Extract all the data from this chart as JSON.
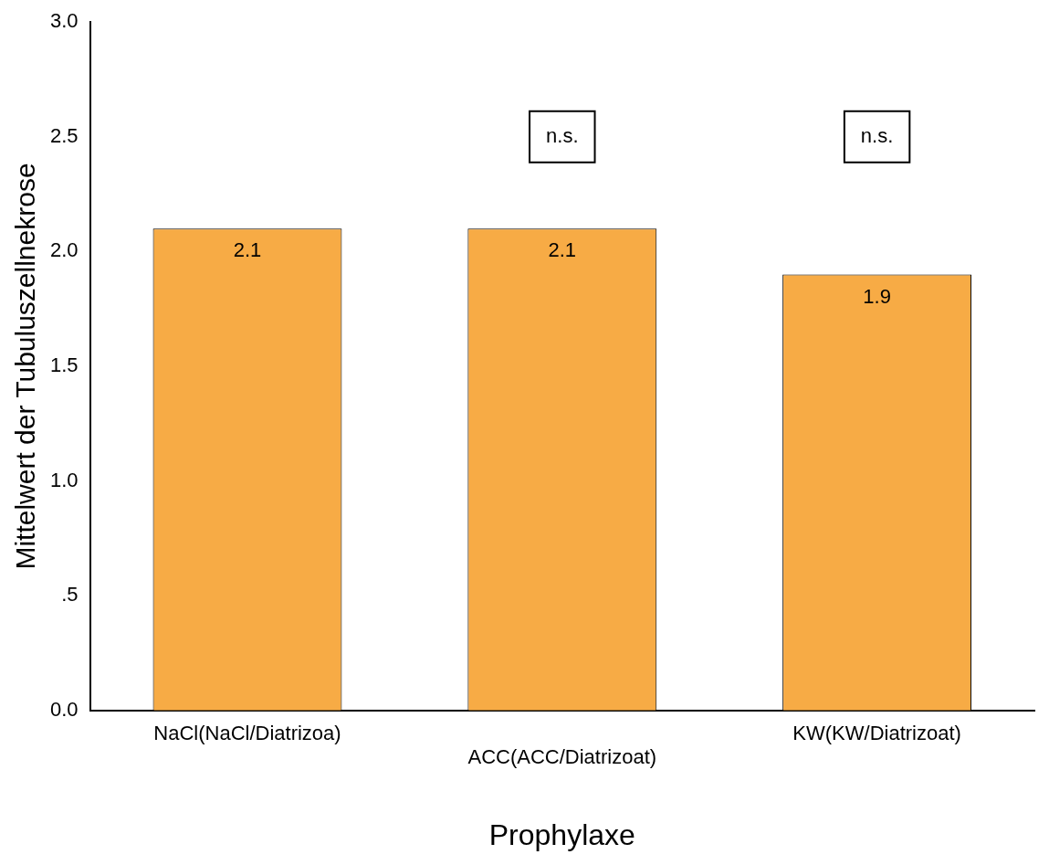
{
  "chart_data": {
    "type": "bar",
    "xlabel": "Prophylaxe",
    "ylabel": "Mittelwert der Tubuluszellnekrose",
    "categories": [
      "NaCl(NaCl/Diatrizoa)",
      "ACC(ACC/Diatrizoat)",
      "KW(KW/Diatrizoat)"
    ],
    "values": [
      2.1,
      2.1,
      1.9
    ],
    "color": "#f7ab45",
    "ylim": [
      0,
      3
    ],
    "yticks": [
      {
        "value": 0,
        "label": "0.0"
      },
      {
        "value": 0.5,
        "label": ".5"
      },
      {
        "value": 1,
        "label": "1.0"
      },
      {
        "value": 1.5,
        "label": "1.5"
      },
      {
        "value": 2,
        "label": "2.0"
      },
      {
        "value": 2.5,
        "label": "2.5"
      },
      {
        "value": 3,
        "label": "3.0"
      }
    ],
    "data_labels": true,
    "grid": false,
    "legend": false,
    "annotations": [
      "n.s.",
      "n.s."
    ]
  }
}
